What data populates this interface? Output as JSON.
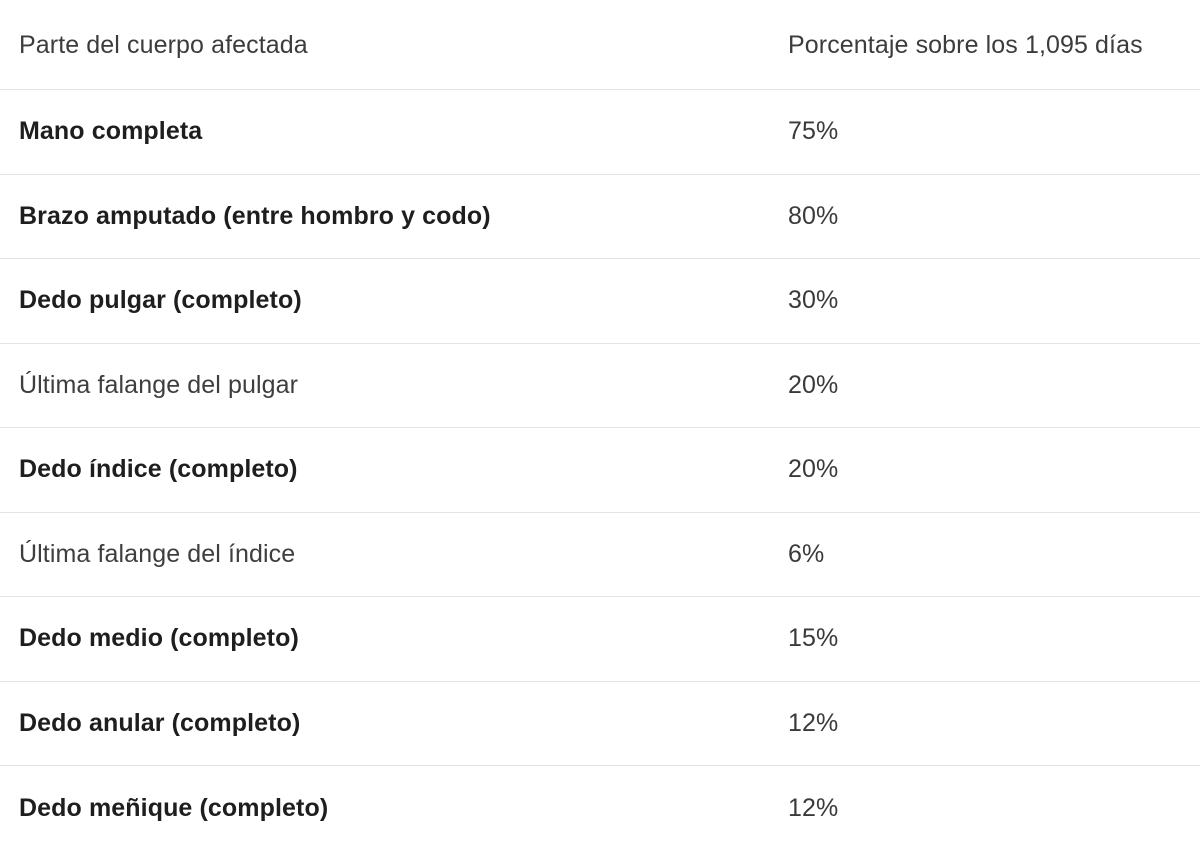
{
  "table": {
    "headers": {
      "part": "Parte del cuerpo afectada",
      "percentage": "Porcentaje sobre los 1,095 días"
    },
    "rows": [
      {
        "part": "Mano completa",
        "percentage": "75%",
        "emphasis": "bold"
      },
      {
        "part": "Brazo amputado (entre hombro y codo)",
        "percentage": "80%",
        "emphasis": "bold"
      },
      {
        "part": "Dedo pulgar (completo)",
        "percentage": "30%",
        "emphasis": "bold"
      },
      {
        "part": "Última falange del pulgar",
        "percentage": "20%",
        "emphasis": "normal"
      },
      {
        "part": "Dedo índice (completo)",
        "percentage": "20%",
        "emphasis": "bold"
      },
      {
        "part": "Última falange del índice",
        "percentage": "6%",
        "emphasis": "normal"
      },
      {
        "part": "Dedo medio (completo)",
        "percentage": "15%",
        "emphasis": "bold"
      },
      {
        "part": "Dedo anular (completo)",
        "percentage": "12%",
        "emphasis": "bold"
      },
      {
        "part": "Dedo meñique (completo)",
        "percentage": "12%",
        "emphasis": "bold"
      }
    ]
  }
}
